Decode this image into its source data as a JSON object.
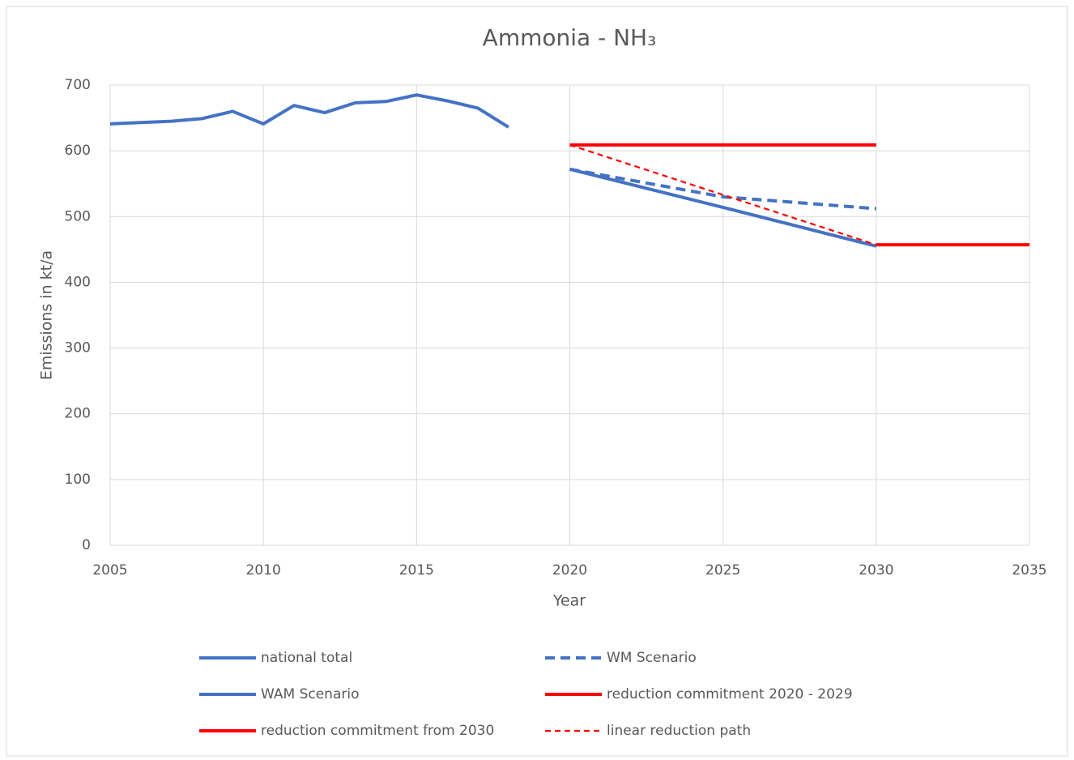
{
  "chart_data": {
    "type": "line",
    "title": "Ammonia - NH₃",
    "x_label": "Year",
    "y_label": "Emissions in kt/a",
    "xlim": [
      2005,
      2035
    ],
    "xticks": [
      2005,
      2010,
      2015,
      2020,
      2025,
      2030,
      2035
    ],
    "ylim": [
      0,
      700
    ],
    "yticks": [
      0,
      100,
      200,
      300,
      400,
      500,
      600,
      700
    ],
    "grid": true,
    "legend": "bottom",
    "series": [
      {
        "name": "national total",
        "color": "#4472c4",
        "style": "solid",
        "weight": "thick",
        "x": [
          2005,
          2006,
          2007,
          2008,
          2009,
          2010,
          2011,
          2012,
          2013,
          2014,
          2015,
          2016,
          2017,
          2018
        ],
        "values": [
          641,
          643,
          645,
          649,
          660,
          641,
          669,
          658,
          673,
          675,
          685,
          676,
          665,
          636
        ]
      },
      {
        "name": "WM Scenario",
        "color": "#4472c4",
        "style": "dashed",
        "weight": "thick",
        "x": [
          2020,
          2025,
          2030
        ],
        "values": [
          572,
          530,
          512
        ]
      },
      {
        "name": "WAM Scenario",
        "color": "#4472c4",
        "style": "solid",
        "weight": "thick",
        "x": [
          2020,
          2025,
          2030
        ],
        "values": [
          572,
          514,
          455
        ]
      },
      {
        "name": "reduction commitment 2020 - 2029",
        "color": "#ff0000",
        "style": "solid",
        "weight": "thick",
        "x": [
          2020,
          2030
        ],
        "values": [
          609,
          609
        ]
      },
      {
        "name": "reduction commitment from 2030",
        "color": "#ff0000",
        "style": "solid",
        "weight": "thick",
        "x": [
          2030,
          2035
        ],
        "values": [
          457,
          457
        ]
      },
      {
        "name": "linear reduction path",
        "color": "#ff0000",
        "style": "dashed",
        "weight": "thin",
        "x": [
          2020,
          2030
        ],
        "values": [
          609,
          457
        ]
      }
    ]
  }
}
